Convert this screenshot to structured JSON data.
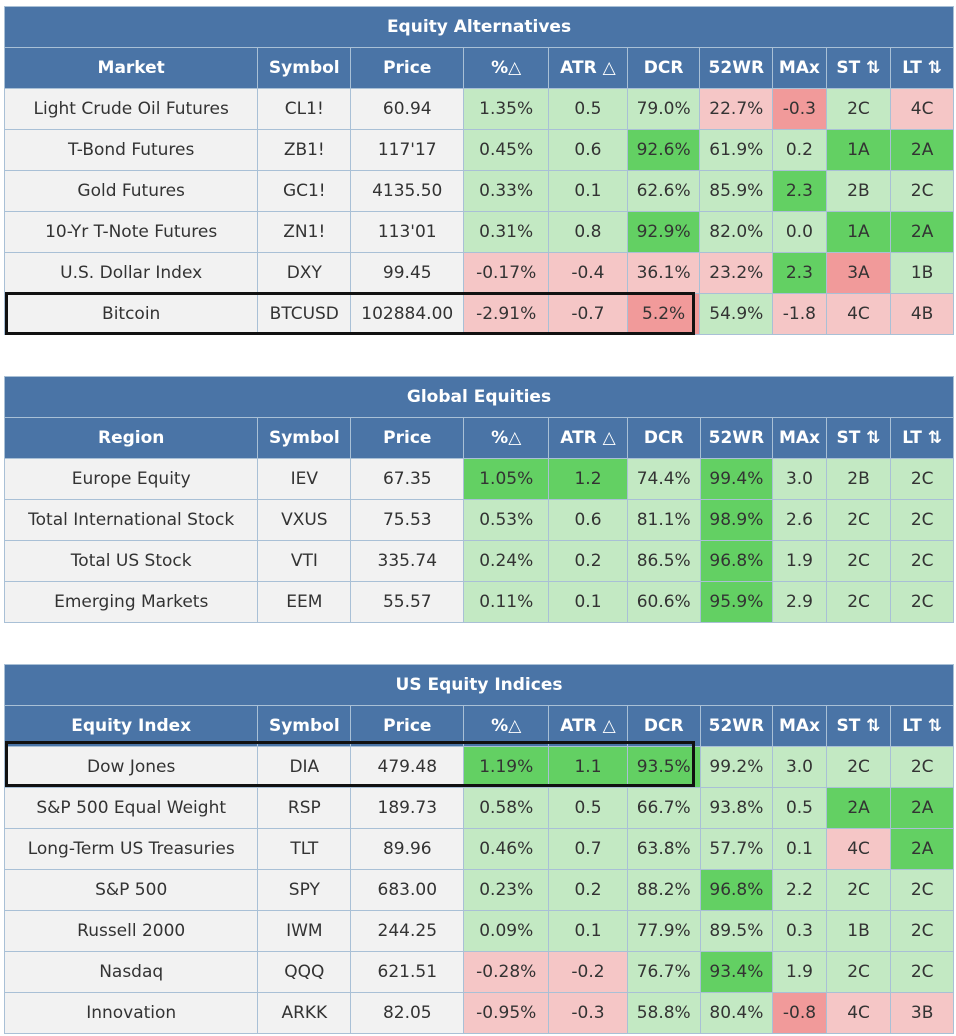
{
  "sections": [
    {
      "title": "Equity Alternatives",
      "headers": [
        "Market",
        "Symbol",
        "Price",
        "%△",
        "ATR △",
        "DCR",
        "52WR",
        "MAx",
        "ST ⇅",
        "LT ⇅"
      ],
      "rows": [
        {
          "name": "Light Crude Oil Futures",
          "symbol": "CL1!",
          "price": "60.94",
          "pct": "1.35%",
          "atr": "0.5",
          "dcr": "79.0%",
          "wr": "22.7%",
          "max": "-0.3",
          "st": "2C",
          "lt": "4C"
        },
        {
          "name": "T-Bond Futures",
          "symbol": "ZB1!",
          "price": "117'17",
          "pct": "0.45%",
          "atr": "0.6",
          "dcr": "92.6%",
          "wr": "61.9%",
          "max": "0.2",
          "st": "1A",
          "lt": "2A"
        },
        {
          "name": "Gold Futures",
          "symbol": "GC1!",
          "price": "4135.50",
          "pct": "0.33%",
          "atr": "0.1",
          "dcr": "62.6%",
          "wr": "85.9%",
          "max": "2.3",
          "st": "2B",
          "lt": "2C"
        },
        {
          "name": "10-Yr T-Note Futures",
          "symbol": "ZN1!",
          "price": "113'01",
          "pct": "0.31%",
          "atr": "0.8",
          "dcr": "92.9%",
          "wr": "82.0%",
          "max": "0.0",
          "st": "1A",
          "lt": "2A"
        },
        {
          "name": "U.S. Dollar Index",
          "symbol": "DXY",
          "price": "99.45",
          "pct": "-0.17%",
          "atr": "-0.4",
          "dcr": "36.1%",
          "wr": "23.2%",
          "max": "2.3",
          "st": "3A",
          "lt": "1B"
        },
        {
          "name": "Bitcoin",
          "symbol": "BTCUSD",
          "price": "102884.00",
          "pct": "-2.91%",
          "atr": "-0.7",
          "dcr": "5.2%",
          "wr": "54.9%",
          "max": "-1.8",
          "st": "4C",
          "lt": "4B"
        }
      ]
    },
    {
      "title": "Global Equities",
      "headers": [
        "Region",
        "Symbol",
        "Price",
        "%△",
        "ATR △",
        "DCR",
        "52WR",
        "MAx",
        "ST ⇅",
        "LT ⇅"
      ],
      "rows": [
        {
          "name": "Europe Equity",
          "symbol": "IEV",
          "price": "67.35",
          "pct": "1.05%",
          "atr": "1.2",
          "dcr": "74.4%",
          "wr": "99.4%",
          "max": "3.0",
          "st": "2B",
          "lt": "2C"
        },
        {
          "name": "Total International Stock",
          "symbol": "VXUS",
          "price": "75.53",
          "pct": "0.53%",
          "atr": "0.6",
          "dcr": "81.1%",
          "wr": "98.9%",
          "max": "2.6",
          "st": "2C",
          "lt": "2C"
        },
        {
          "name": "Total US Stock",
          "symbol": "VTI",
          "price": "335.74",
          "pct": "0.24%",
          "atr": "0.2",
          "dcr": "86.5%",
          "wr": "96.8%",
          "max": "1.9",
          "st": "2C",
          "lt": "2C"
        },
        {
          "name": "Emerging Markets",
          "symbol": "EEM",
          "price": "55.57",
          "pct": "0.11%",
          "atr": "0.1",
          "dcr": "60.6%",
          "wr": "95.9%",
          "max": "2.9",
          "st": "2C",
          "lt": "2C"
        }
      ]
    },
    {
      "title": "US Equity Indices",
      "headers": [
        "Equity Index",
        "Symbol",
        "Price",
        "%△",
        "ATR △",
        "DCR",
        "52WR",
        "MAx",
        "ST ⇅",
        "LT ⇅"
      ],
      "rows": [
        {
          "name": "Dow Jones",
          "symbol": "DIA",
          "price": "479.48",
          "pct": "1.19%",
          "atr": "1.1",
          "dcr": "93.5%",
          "wr": "99.2%",
          "max": "3.0",
          "st": "2C",
          "lt": "2C"
        },
        {
          "name": "S&P 500 Equal Weight",
          "symbol": "RSP",
          "price": "189.73",
          "pct": "0.58%",
          "atr": "0.5",
          "dcr": "66.7%",
          "wr": "93.8%",
          "max": "0.5",
          "st": "2A",
          "lt": "2A"
        },
        {
          "name": "Long-Term US Treasuries",
          "symbol": "TLT",
          "price": "89.96",
          "pct": "0.46%",
          "atr": "0.7",
          "dcr": "63.8%",
          "wr": "57.7%",
          "max": "0.1",
          "st": "4C",
          "lt": "2A"
        },
        {
          "name": "S&P 500",
          "symbol": "SPY",
          "price": "683.00",
          "pct": "0.23%",
          "atr": "0.2",
          "dcr": "88.2%",
          "wr": "96.8%",
          "max": "2.2",
          "st": "2C",
          "lt": "2C"
        },
        {
          "name": "Russell 2000",
          "symbol": "IWM",
          "price": "244.25",
          "pct": "0.09%",
          "atr": "0.1",
          "dcr": "77.9%",
          "wr": "89.5%",
          "max": "0.3",
          "st": "1B",
          "lt": "2C"
        },
        {
          "name": "Nasdaq",
          "symbol": "QQQ",
          "price": "621.51",
          "pct": "-0.28%",
          "atr": "-0.2",
          "dcr": "76.7%",
          "wr": "93.4%",
          "max": "1.9",
          "st": "2C",
          "lt": "2C"
        },
        {
          "name": "Innovation",
          "symbol": "ARKK",
          "price": "82.05",
          "pct": "-0.95%",
          "atr": "-0.3",
          "dcr": "58.8%",
          "wr": "80.4%",
          "max": "-0.8",
          "st": "4C",
          "lt": "3B"
        }
      ]
    }
  ],
  "colors": {
    "header_bg": "#4a74a6",
    "header_text": "#ffffff",
    "cell_neutral": "#f2f2f2",
    "green_light": "#c3e9c3",
    "green_strong": "#63d063",
    "red_light": "#f5c6c6",
    "red_strong": "#f19a9a",
    "grid_line": "#a9c0d6",
    "highlight_border": "#111111"
  }
}
